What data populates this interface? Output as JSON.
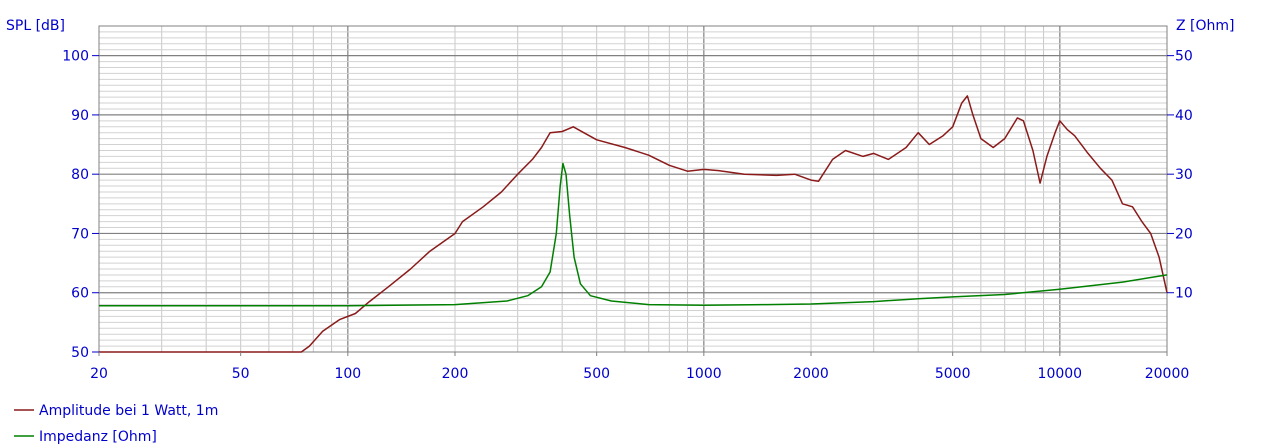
{
  "chart_data": {
    "type": "line",
    "title": "",
    "xlabel": "",
    "x_scale": "log",
    "xlim": [
      20,
      20000
    ],
    "x_ticks": [
      20,
      50,
      100,
      200,
      500,
      1000,
      2000,
      5000,
      10000,
      20000
    ],
    "grid": true,
    "legend_position": "bottom-left",
    "left_axis": {
      "label": "SPL [dB]",
      "ylim": [
        50,
        105
      ],
      "ticks": [
        50,
        60,
        70,
        80,
        90,
        100
      ]
    },
    "right_axis": {
      "label": "Z [Ohm]",
      "ylim": [
        0,
        55
      ],
      "ticks": [
        10,
        20,
        30,
        40,
        50
      ]
    },
    "series": [
      {
        "name": "Amplitude bei 1 Watt, 1m",
        "axis": "left",
        "color": "#8b1a1a",
        "points": [
          [
            20,
            50
          ],
          [
            50,
            50
          ],
          [
            74,
            50
          ],
          [
            78,
            51
          ],
          [
            85,
            53.5
          ],
          [
            95,
            55.5
          ],
          [
            105,
            56.5
          ],
          [
            115,
            58.5
          ],
          [
            130,
            61
          ],
          [
            150,
            64
          ],
          [
            170,
            67
          ],
          [
            200,
            70
          ],
          [
            210,
            72
          ],
          [
            240,
            74.5
          ],
          [
            270,
            77
          ],
          [
            300,
            80
          ],
          [
            330,
            82.5
          ],
          [
            350,
            84.5
          ],
          [
            370,
            87
          ],
          [
            400,
            87.2
          ],
          [
            430,
            88
          ],
          [
            460,
            87
          ],
          [
            500,
            85.8
          ],
          [
            600,
            84.5
          ],
          [
            700,
            83.2
          ],
          [
            800,
            81.5
          ],
          [
            900,
            80.5
          ],
          [
            1000,
            80.8
          ],
          [
            1100,
            80.6
          ],
          [
            1300,
            80
          ],
          [
            1600,
            79.8
          ],
          [
            1800,
            80
          ],
          [
            2000,
            79
          ],
          [
            2100,
            78.8
          ],
          [
            2300,
            82.5
          ],
          [
            2500,
            84
          ],
          [
            2800,
            83
          ],
          [
            3000,
            83.5
          ],
          [
            3300,
            82.5
          ],
          [
            3700,
            84.5
          ],
          [
            4000,
            87
          ],
          [
            4300,
            85
          ],
          [
            4700,
            86.5
          ],
          [
            5000,
            88
          ],
          [
            5300,
            92
          ],
          [
            5500,
            93.2
          ],
          [
            5700,
            90
          ],
          [
            6000,
            86
          ],
          [
            6500,
            84.5
          ],
          [
            7000,
            86
          ],
          [
            7600,
            89.5
          ],
          [
            7900,
            89
          ],
          [
            8400,
            84
          ],
          [
            8800,
            78.5
          ],
          [
            9200,
            83
          ],
          [
            9700,
            87
          ],
          [
            10000,
            89
          ],
          [
            10500,
            87.5
          ],
          [
            11000,
            86.5
          ],
          [
            12000,
            83.5
          ],
          [
            13000,
            81
          ],
          [
            14000,
            79
          ],
          [
            15000,
            75
          ],
          [
            16000,
            74.5
          ],
          [
            17000,
            72
          ],
          [
            18000,
            70
          ],
          [
            19000,
            66
          ],
          [
            20000,
            60
          ]
        ]
      },
      {
        "name": "Impedanz [Ohm]",
        "axis": "right",
        "color": "#008000",
        "points": [
          [
            20,
            7.8
          ],
          [
            100,
            7.8
          ],
          [
            200,
            8
          ],
          [
            280,
            8.6
          ],
          [
            320,
            9.5
          ],
          [
            350,
            11
          ],
          [
            370,
            13.5
          ],
          [
            385,
            20
          ],
          [
            395,
            28
          ],
          [
            402,
            31.8
          ],
          [
            410,
            30
          ],
          [
            420,
            23
          ],
          [
            432,
            16
          ],
          [
            450,
            11.5
          ],
          [
            480,
            9.5
          ],
          [
            550,
            8.6
          ],
          [
            700,
            8
          ],
          [
            1000,
            7.9
          ],
          [
            1500,
            8
          ],
          [
            2000,
            8.1
          ],
          [
            3000,
            8.5
          ],
          [
            4000,
            9
          ],
          [
            5000,
            9.3
          ],
          [
            7000,
            9.7
          ],
          [
            10000,
            10.6
          ],
          [
            15000,
            11.8
          ],
          [
            20000,
            13
          ]
        ]
      }
    ]
  }
}
